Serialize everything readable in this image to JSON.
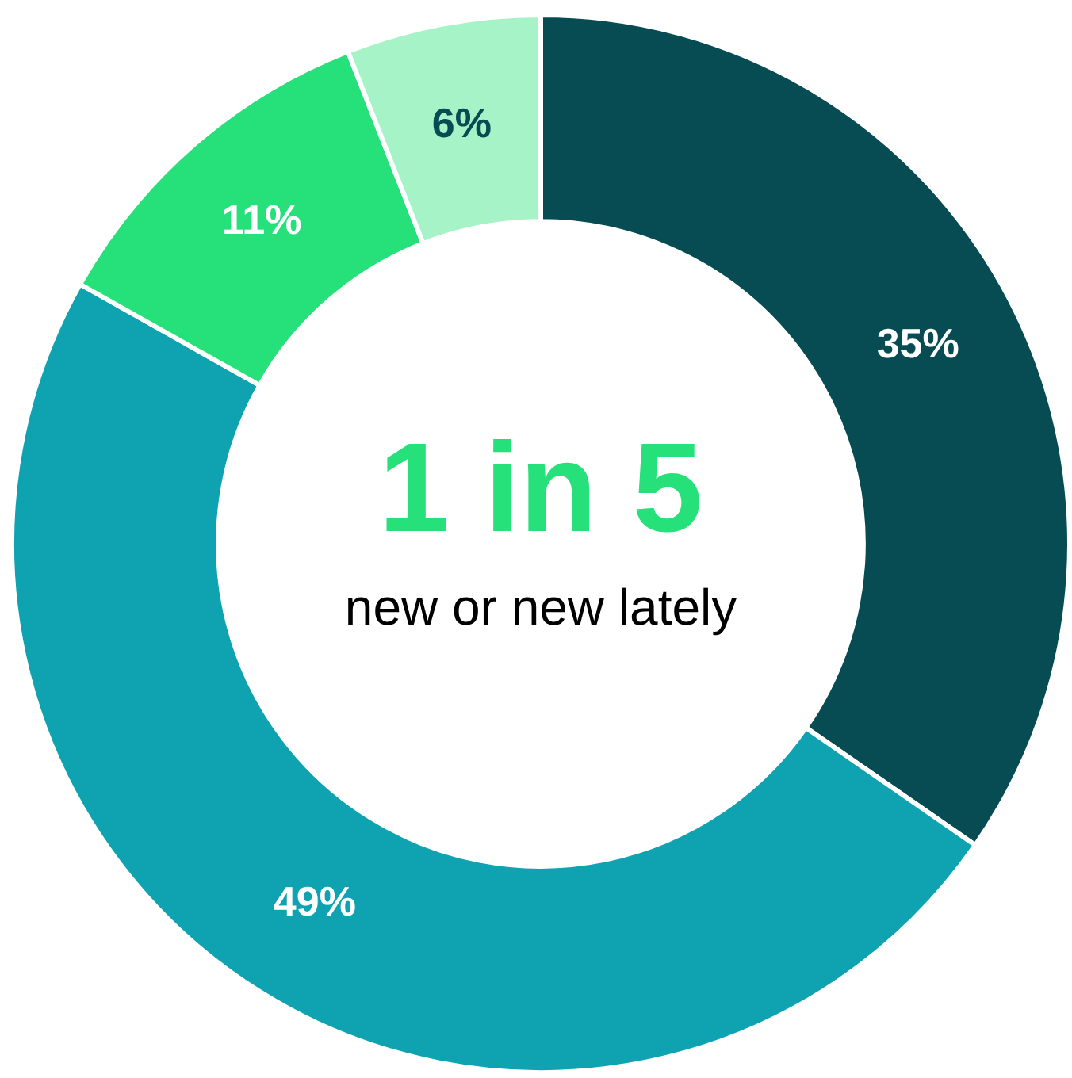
{
  "chart_data": {
    "type": "donut",
    "categories": [
      null,
      null,
      null,
      null
    ],
    "values": [
      35,
      49,
      11,
      6
    ],
    "colors": [
      "#064c52",
      "#0fa3b1",
      "#26e07a",
      "#a6f3c8"
    ],
    "value_labels": [
      "35%",
      "49%",
      "11%",
      "6%"
    ],
    "legend": false,
    "annotations": [
      "1 in 5",
      "new or new lately"
    ]
  }
}
